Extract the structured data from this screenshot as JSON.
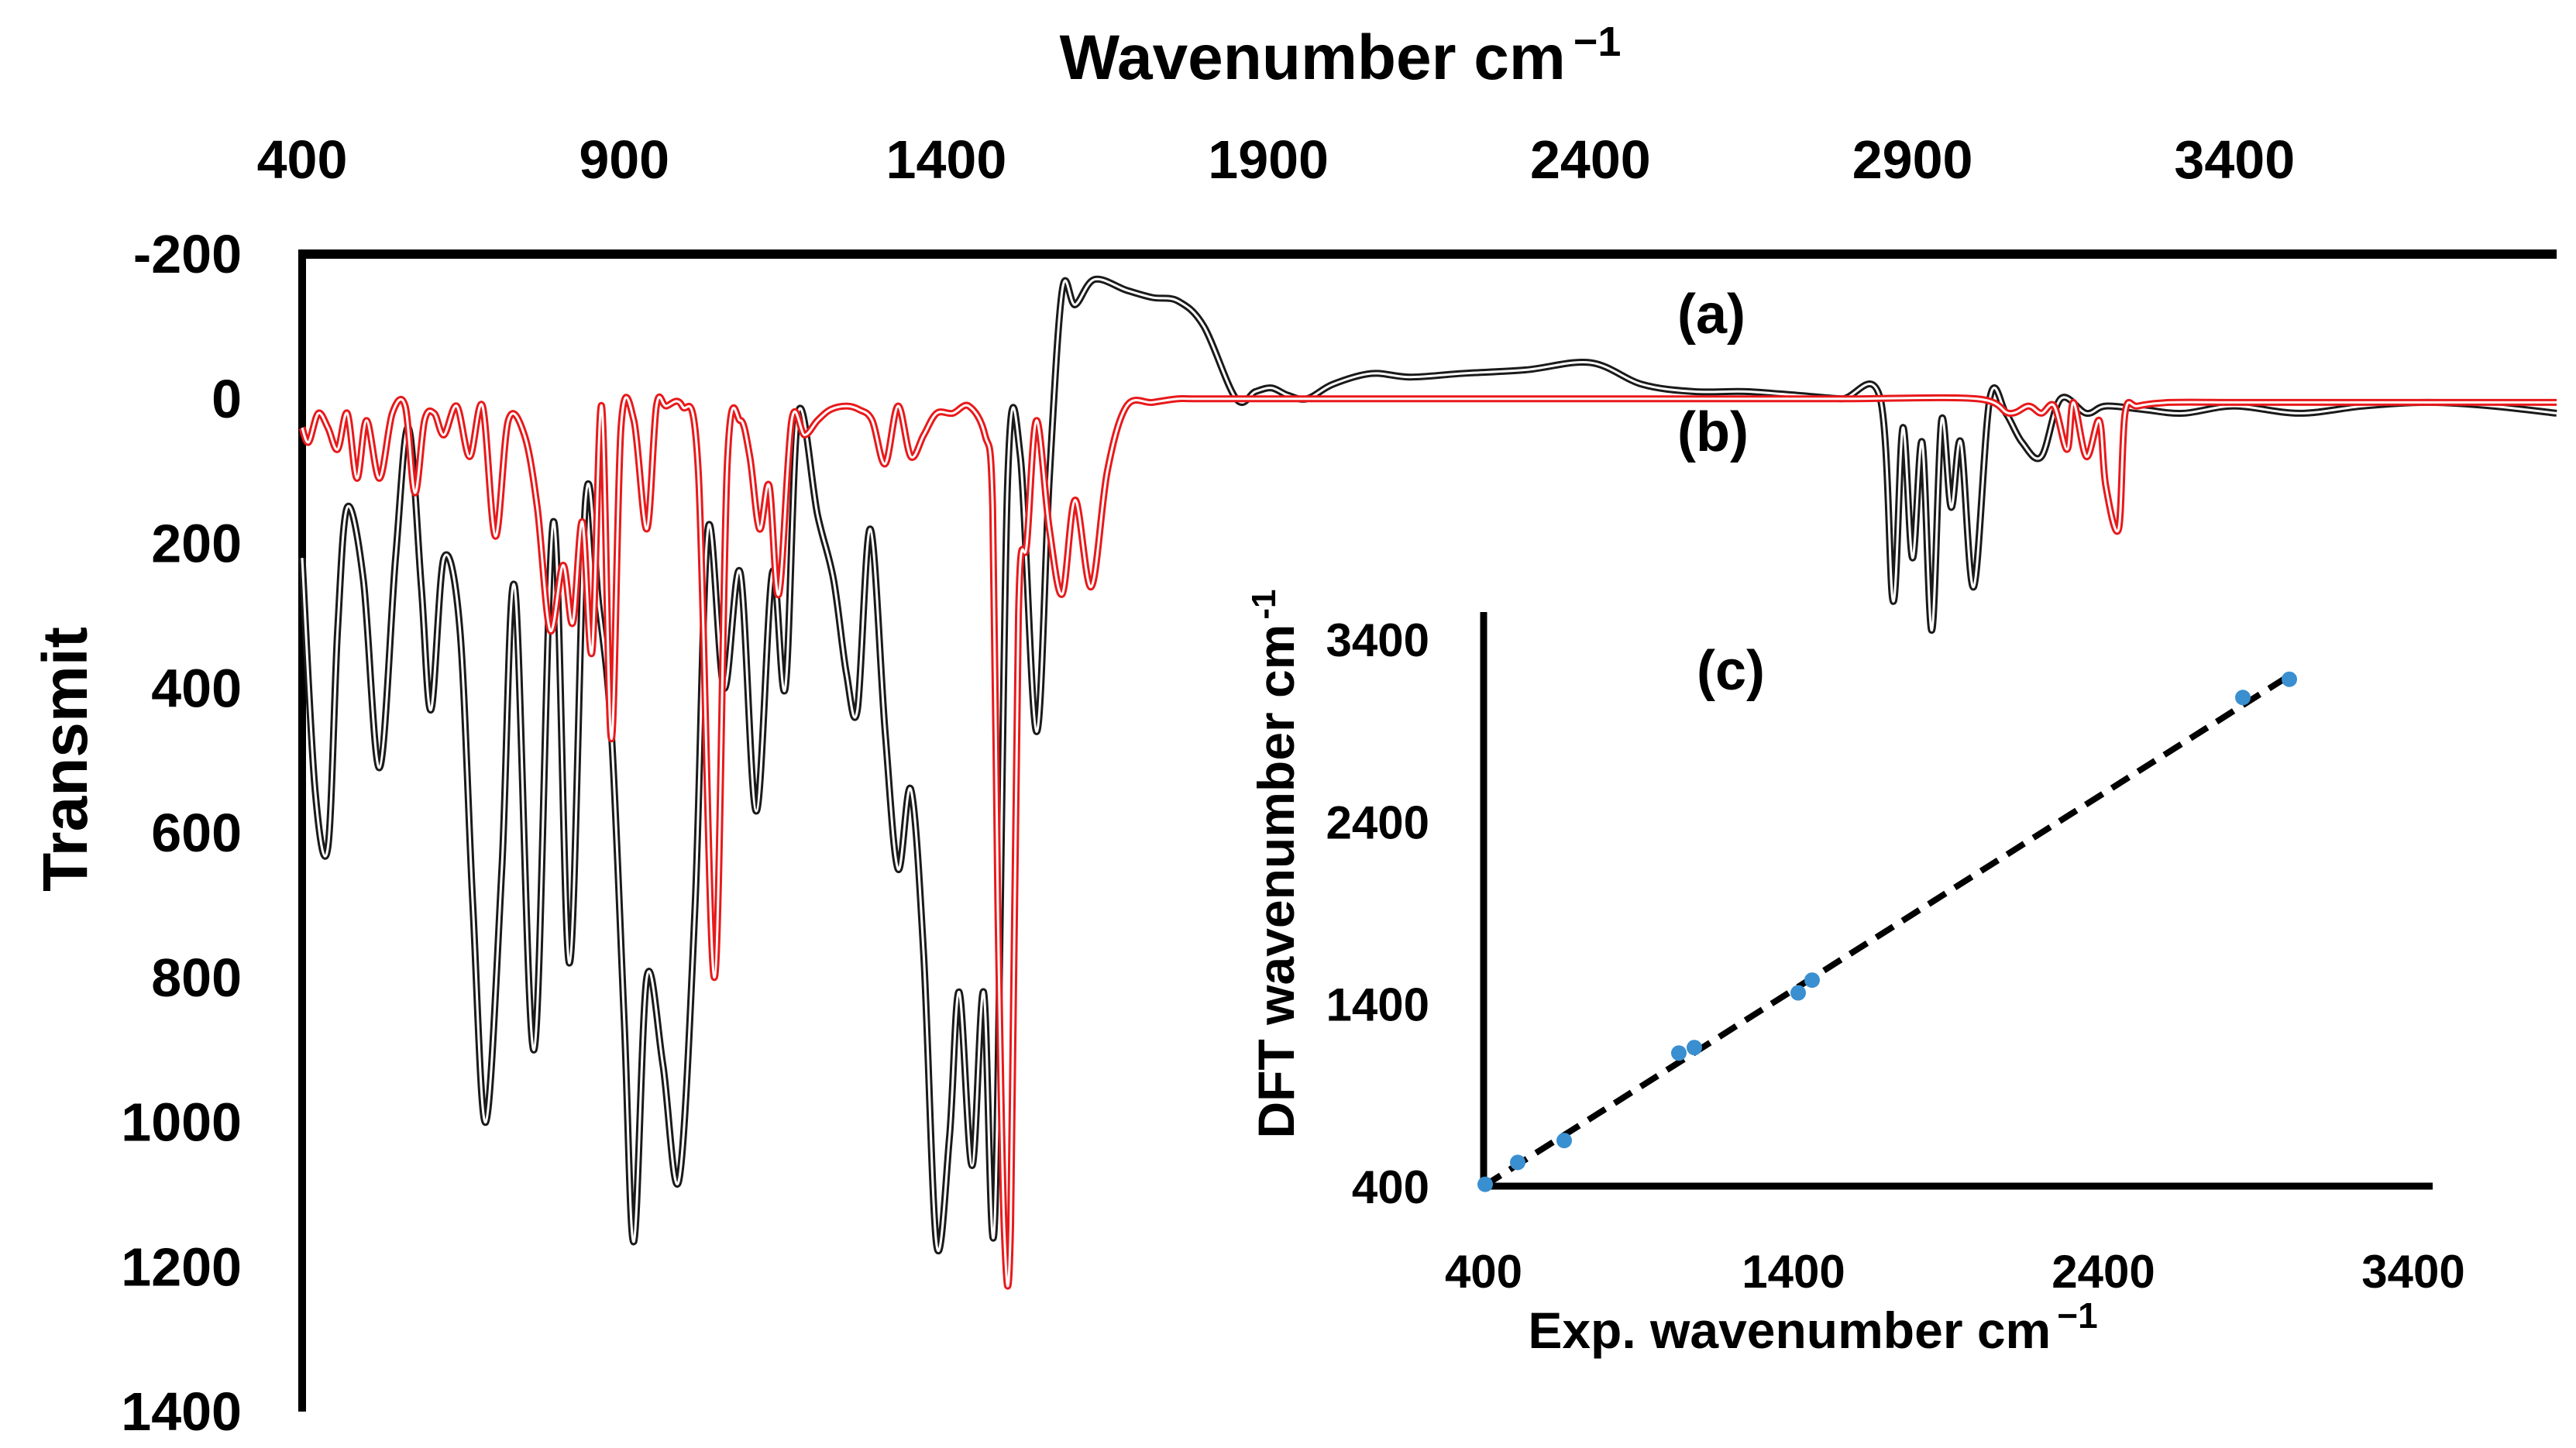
{
  "chart_data": [
    {
      "type": "line",
      "title": "",
      "xlabel": "Wavenumber cm",
      "xlabel_superscript": "−1",
      "ylabel": "Transmit",
      "xlim": [
        400,
        3900
      ],
      "ylim": [
        -200,
        1400
      ],
      "y_inverted": true,
      "x_ticks": [
        "400",
        "900",
        "1400",
        "1900",
        "2400",
        "2900",
        "3400"
      ],
      "y_ticks": [
        "-200",
        "0",
        "200",
        "400",
        "600",
        "800",
        "1000",
        "1200",
        "1400"
      ],
      "grid": false,
      "colors": {
        "series_a": "#1a1a1a",
        "series_b": "#e8191b"
      },
      "series": [
        {
          "name": "(a)",
          "label": "(a)",
          "style": "double-black",
          "x": [
            400,
            420,
            440,
            455,
            470,
            495,
            520,
            545,
            565,
            585,
            600,
            620,
            645,
            665,
            685,
            710,
            730,
            760,
            790,
            815,
            840,
            860,
            880,
            900,
            915,
            935,
            960,
            985,
            1010,
            1030,
            1055,
            1080,
            1105,
            1130,
            1150,
            1170,
            1200,
            1225,
            1245,
            1262,
            1282,
            1305,
            1325,
            1345,
            1365,
            1385,
            1405,
            1420,
            1440,
            1458,
            1475,
            1495,
            1515,
            1540,
            1560,
            1580,
            1600,
            1630,
            1680,
            1720,
            1760,
            1800,
            1850,
            1880,
            1905,
            1930,
            1960,
            2000,
            2060,
            2120,
            2200,
            2300,
            2400,
            2480,
            2560,
            2640,
            2720,
            2790,
            2850,
            2870,
            2885,
            2900,
            2915,
            2930,
            2945,
            2960,
            2975,
            2995,
            3020,
            3045,
            3070,
            3100,
            3130,
            3170,
            3200,
            3260,
            3320,
            3400,
            3500,
            3600,
            3700,
            3800,
            3900
          ],
          "y": [
            220,
            540,
            620,
            320,
            150,
            250,
            510,
            220,
            40,
            260,
            430,
            220,
            320,
            700,
            1000,
            650,
            260,
            900,
            170,
            780,
            140,
            280,
            460,
            860,
            1165,
            800,
            920,
            1080,
            700,
            180,
            400,
            240,
            570,
            240,
            400,
            20,
            160,
            250,
            380,
            430,
            180,
            460,
            650,
            540,
            770,
            1170,
            1020,
            820,
            1060,
            820,
            1140,
            120,
            80,
            460,
            110,
            -150,
            -130,
            -165,
            -150,
            -140,
            -135,
            -100,
            0,
            -10,
            -15,
            -5,
            0,
            -20,
            -35,
            -30,
            -35,
            -40,
            -50,
            -20,
            -10,
            -10,
            -5,
            0,
            0,
            280,
            40,
            220,
            60,
            320,
            30,
            150,
            60,
            260,
            0,
            20,
            60,
            80,
            0,
            20,
            10,
            15,
            20,
            10,
            20,
            10,
            5,
            10,
            20
          ]
        },
        {
          "name": "(b)",
          "label": "(b)",
          "style": "double-red",
          "x": [
            400,
            410,
            425,
            440,
            455,
            470,
            485,
            500,
            520,
            540,
            560,
            575,
            590,
            605,
            620,
            640,
            660,
            680,
            700,
            720,
            745,
            765,
            785,
            805,
            820,
            835,
            850,
            865,
            880,
            895,
            915,
            935,
            950,
            965,
            990,
            1015,
            1040,
            1060,
            1080,
            1095,
            1110,
            1125,
            1140,
            1160,
            1180,
            1200,
            1220,
            1245,
            1265,
            1285,
            1305,
            1325,
            1345,
            1365,
            1385,
            1410,
            1435,
            1460,
            1472,
            1480,
            1490,
            1500,
            1512,
            1525,
            1540,
            1560,
            1580,
            1600,
            1625,
            1650,
            1680,
            1720,
            1760,
            1800,
            2000,
            2200,
            2400,
            2600,
            2800,
            3000,
            3050,
            3080,
            3100,
            3120,
            3140,
            3150,
            3170,
            3190,
            3200,
            3220,
            3230,
            3250,
            3300,
            3400,
            3500,
            3600,
            3700,
            3800,
            3900
          ],
          "y": [
            40,
            60,
            20,
            40,
            70,
            20,
            110,
            30,
            110,
            20,
            10,
            130,
            30,
            20,
            50,
            10,
            80,
            10,
            190,
            30,
            50,
            150,
            320,
            230,
            310,
            170,
            350,
            10,
            470,
            40,
            30,
            180,
            10,
            10,
            10,
            100,
            800,
            90,
            30,
            80,
            180,
            120,
            270,
            30,
            50,
            30,
            15,
            10,
            15,
            30,
            90,
            10,
            80,
            50,
            20,
            20,
            10,
            50,
            150,
            700,
            1150,
            1140,
            300,
            200,
            30,
            180,
            270,
            140,
            260,
            100,
            10,
            5,
            0,
            0,
            0,
            0,
            0,
            0,
            0,
            0,
            20,
            10,
            20,
            10,
            70,
            5,
            80,
            30,
            120,
            180,
            20,
            10,
            5,
            5,
            5,
            5,
            5,
            5,
            5
          ]
        }
      ]
    },
    {
      "type": "scatter",
      "label": "(c)",
      "xlabel": "Exp. wavenumber cm",
      "xlabel_superscript": "−1",
      "ylabel": "DFT wavenumber cm",
      "ylabel_superscript": "-1",
      "xlim": [
        400,
        3400
      ],
      "ylim": [
        400,
        3400
      ],
      "x_ticks": [
        "400",
        "1400",
        "2400",
        "3400"
      ],
      "y_ticks": [
        "400",
        "1400",
        "2400",
        "3400"
      ],
      "trendline": "dashed linear fit",
      "grid": false,
      "colors": {
        "points": "#3a8fd0",
        "trendline": "#000000"
      },
      "x": [
        405,
        510,
        660,
        1030,
        1080,
        1415,
        1460,
        2850,
        3000
      ],
      "y": [
        410,
        530,
        650,
        1130,
        1160,
        1460,
        1530,
        3080,
        3180
      ]
    }
  ]
}
